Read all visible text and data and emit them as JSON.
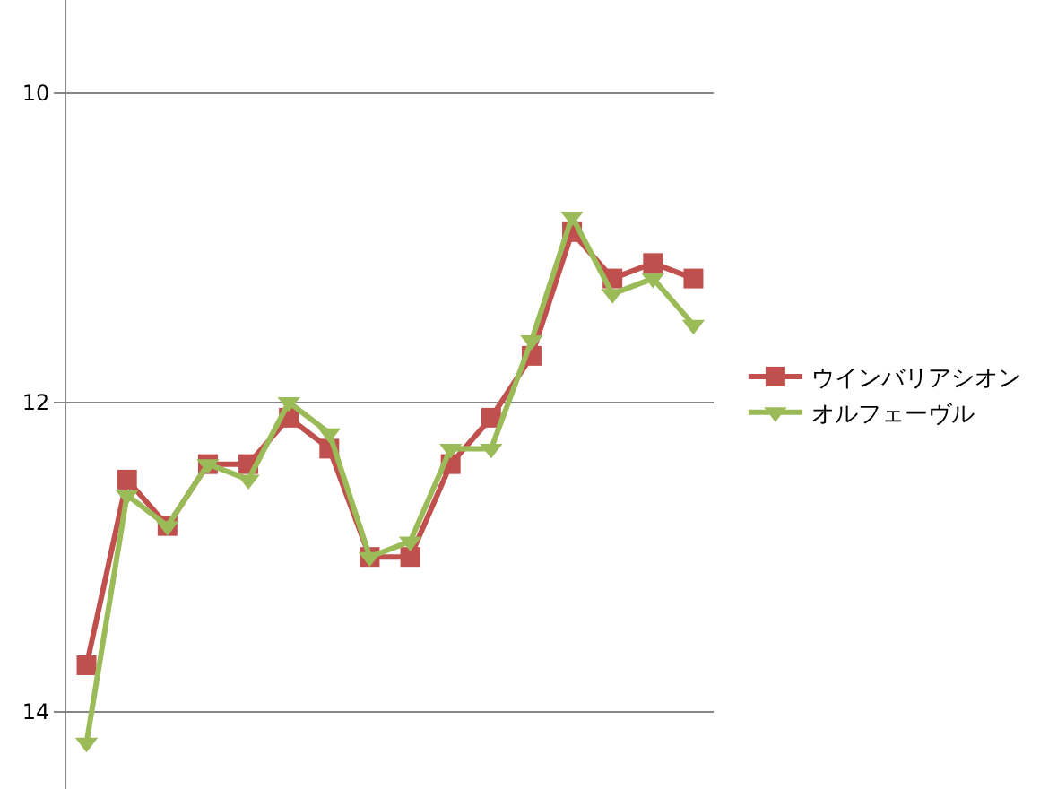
{
  "chart_data": {
    "type": "line",
    "categories": [
      null,
      null,
      null,
      null,
      null,
      null,
      null,
      null,
      null,
      null,
      null,
      null,
      null,
      null,
      null,
      null
    ],
    "series": [
      {
        "name": "ウインバリアシオン",
        "color": "#c0504d",
        "marker": "square",
        "values": [
          13.7,
          12.5,
          12.8,
          12.4,
          12.4,
          12.1,
          12.3,
          13.0,
          13.0,
          12.4,
          12.1,
          11.7,
          10.9,
          11.2,
          11.1,
          11.2
        ]
      },
      {
        "name": "オルフェーヴル",
        "color": "#9bbb59",
        "marker": "triangle-down",
        "values": [
          14.2,
          12.6,
          12.8,
          12.4,
          12.5,
          12.0,
          12.2,
          13.0,
          12.9,
          12.3,
          12.3,
          11.6,
          10.8,
          11.3,
          11.2,
          11.5
        ]
      }
    ],
    "ylim": [
      14.5,
      9.4
    ],
    "yticks": [
      10,
      12,
      14
    ],
    "grid": "y",
    "legend": "right"
  }
}
